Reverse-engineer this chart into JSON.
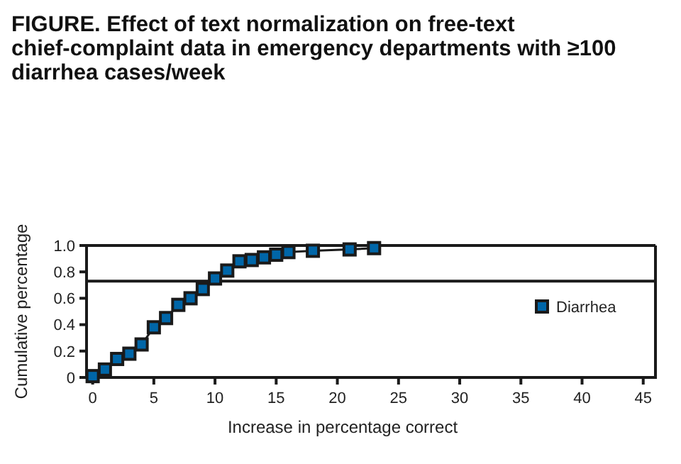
{
  "chart_data": {
    "type": "line",
    "title": "FIGURE. Effect of text normalization on free-text chief-complaint data in emergency departments with ≥100 diarrhea cases/week",
    "xlabel": "Increase in percentage correct",
    "ylabel": "Cumulative percentage",
    "x": [
      0,
      1,
      2,
      3,
      4,
      5,
      6,
      7,
      8,
      9,
      10,
      11,
      12,
      13,
      14,
      15,
      16,
      18,
      21,
      23
    ],
    "series": [
      {
        "name": "Diarrhea",
        "color": "#0066a8",
        "values": [
          0.01,
          0.06,
          0.14,
          0.18,
          0.25,
          0.38,
          0.45,
          0.55,
          0.6,
          0.67,
          0.75,
          0.81,
          0.88,
          0.89,
          0.91,
          0.93,
          0.95,
          0.96,
          0.97,
          0.98
        ]
      }
    ],
    "xlim": [
      -0.5,
      46
    ],
    "xticks": [
      0,
      5,
      10,
      15,
      20,
      25,
      30,
      35,
      40,
      45
    ],
    "ylim": [
      0,
      1
    ],
    "yticks": [
      0,
      {
        "value": 0.2,
        "label": "0.2"
      },
      {
        "value": 0.4,
        "label": "0.4"
      },
      {
        "value": 0.6,
        "label": "0.6"
      },
      {
        "value": 0.8,
        "label": "0.8"
      },
      {
        "value": 1,
        "label": "1.0"
      }
    ],
    "ref_lines": [
      {
        "axis": "y",
        "value": 0.73,
        "color": "#1a1a1a"
      }
    ],
    "grid": false,
    "legend": "right",
    "marker": "square",
    "line_style": "solid"
  }
}
